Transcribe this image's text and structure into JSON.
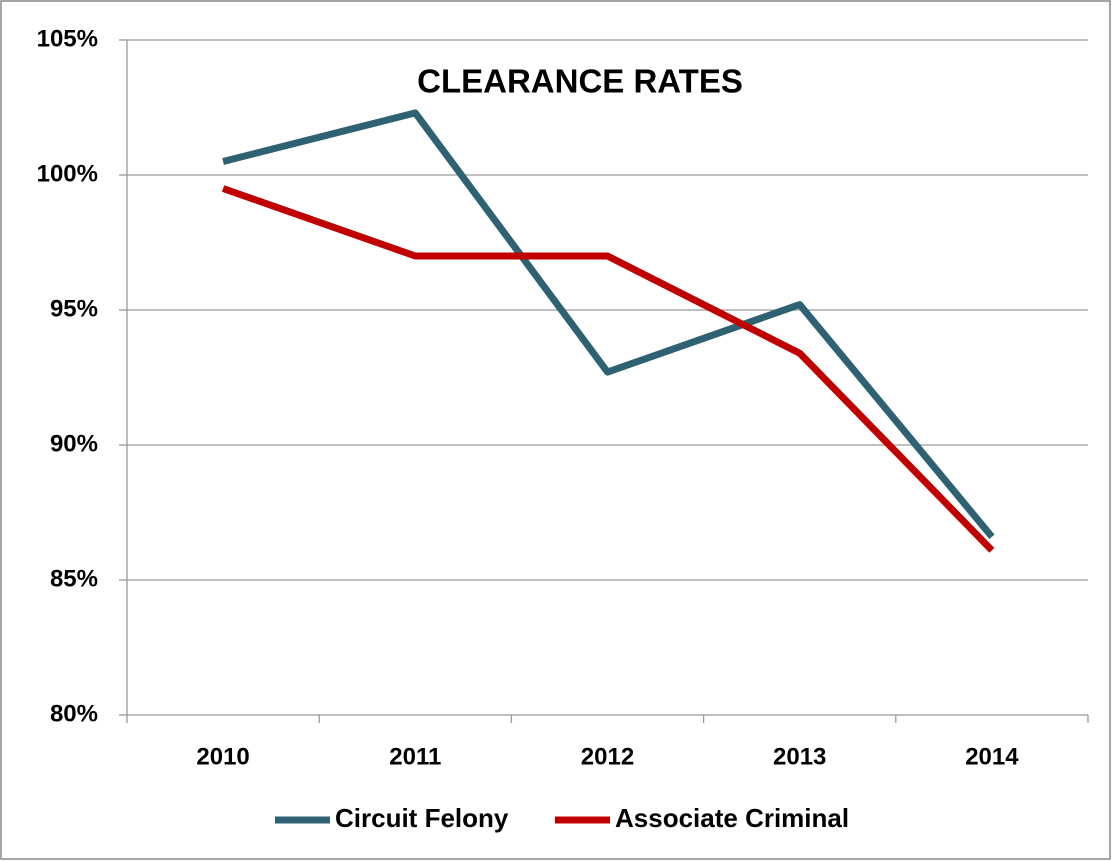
{
  "chart_data": {
    "type": "line",
    "title": "CLEARANCE RATES",
    "categories": [
      "2010",
      "2011",
      "2012",
      "2013",
      "2014"
    ],
    "series": [
      {
        "name": "Circuit Felony",
        "color": "#2e6272",
        "values": [
          100.5,
          102.3,
          92.7,
          95.2,
          86.6
        ]
      },
      {
        "name": "Associate Criminal",
        "color": "#c00000",
        "values": [
          99.5,
          97.0,
          97.0,
          93.4,
          86.1
        ]
      }
    ],
    "ylim": [
      80,
      105
    ],
    "yticks": [
      {
        "value": 80,
        "label": "80%"
      },
      {
        "value": 85,
        "label": "85%"
      },
      {
        "value": 90,
        "label": "90%"
      },
      {
        "value": 95,
        "label": "95%"
      },
      {
        "value": 100,
        "label": "100%"
      },
      {
        "value": 105,
        "label": "105%"
      }
    ],
    "grid": true,
    "legend": "bottom"
  }
}
